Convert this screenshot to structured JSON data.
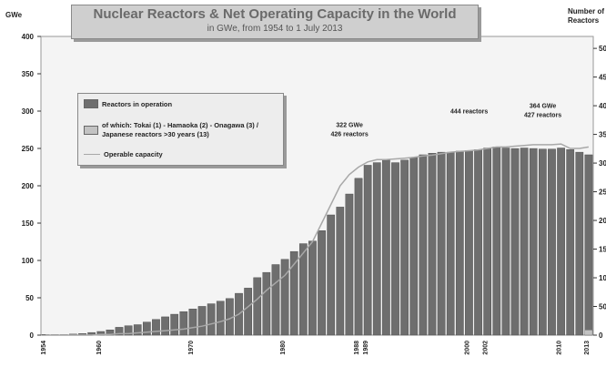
{
  "chart_data": {
    "type": "bar",
    "title": "Nuclear Reactors & Net Operating Capacity in the World",
    "subtitle": "in GWe, from 1954 to 1 July 2013",
    "ylabel": "GWe",
    "y2label": "Number of Reactors",
    "ylim": [
      0,
      400
    ],
    "y_ticks": [
      0,
      50,
      100,
      150,
      200,
      250,
      300,
      350,
      400
    ],
    "y2_ticks": [
      "0",
      "50",
      "100",
      "150",
      "200",
      "250",
      "300",
      "350",
      "400",
      "450",
      "500"
    ],
    "x_tick_labels": [
      "1954",
      "1960",
      "1970",
      "1980",
      "1988",
      "1989",
      "2000",
      "2002",
      "2010",
      "2013"
    ],
    "years": [
      1954,
      1955,
      1956,
      1957,
      1958,
      1959,
      1960,
      1961,
      1962,
      1963,
      1964,
      1965,
      1966,
      1967,
      1968,
      1969,
      1970,
      1971,
      1972,
      1973,
      1974,
      1975,
      1976,
      1977,
      1978,
      1979,
      1980,
      1981,
      1982,
      1983,
      1984,
      1985,
      1986,
      1987,
      1988,
      1989,
      1990,
      1991,
      1992,
      1993,
      1994,
      1995,
      1996,
      1997,
      1998,
      1999,
      2000,
      2001,
      2002,
      2003,
      2004,
      2005,
      2006,
      2007,
      2008,
      2009,
      2010,
      2011,
      2012,
      2013
    ],
    "series": [
      {
        "name": "Reactors in operation",
        "color": "#6e6e6e",
        "values": [
          1,
          1,
          1,
          2,
          3,
          5,
          7,
          10,
          15,
          18,
          20,
          25,
          30,
          35,
          40,
          45,
          50,
          55,
          60,
          65,
          70,
          80,
          90,
          110,
          120,
          135,
          145,
          160,
          175,
          180,
          200,
          230,
          245,
          270,
          300,
          325,
          330,
          335,
          330,
          335,
          340,
          345,
          348,
          350,
          350,
          352,
          353,
          355,
          358,
          360,
          358,
          357,
          358,
          357,
          356,
          356,
          358,
          355,
          350,
          345
        ]
      },
      {
        "name": "of which: Tokai (1) - Hamaoka (2) - Onagawa (3) / Japanese reactors >30 years (13)",
        "color": "#c2c2c2",
        "values": [
          0,
          0,
          0,
          0,
          0,
          0,
          0,
          0,
          0,
          0,
          0,
          0,
          0,
          0,
          0,
          0,
          0,
          0,
          0,
          0,
          0,
          0,
          0,
          0,
          0,
          0,
          0,
          0,
          0,
          0,
          0,
          0,
          0,
          0,
          0,
          0,
          0,
          0,
          0,
          0,
          0,
          0,
          0,
          0,
          0,
          0,
          0,
          0,
          0,
          0,
          0,
          0,
          0,
          0,
          0,
          0,
          0,
          0,
          0,
          10
        ]
      },
      {
        "name": "Operable capacity",
        "color": "#a8a8a8",
        "values": [
          0,
          0,
          0,
          0,
          0,
          0,
          1,
          1,
          2,
          2,
          3,
          4,
          5,
          6,
          7,
          8,
          10,
          12,
          15,
          18,
          22,
          28,
          38,
          48,
          60,
          70,
          80,
          95,
          110,
          125,
          150,
          175,
          200,
          215,
          225,
          232,
          235,
          235,
          236,
          237,
          238,
          240,
          241,
          243,
          245,
          246,
          247,
          248,
          250,
          252,
          252,
          253,
          254,
          255,
          255,
          255,
          256,
          250,
          250,
          252
        ]
      }
    ],
    "annotations": [
      "322 GWe",
      "426 reactors",
      "444 reactors",
      "364 GWe",
      "427 reactors"
    ],
    "legend_position": "center-left",
    "grid": false
  }
}
